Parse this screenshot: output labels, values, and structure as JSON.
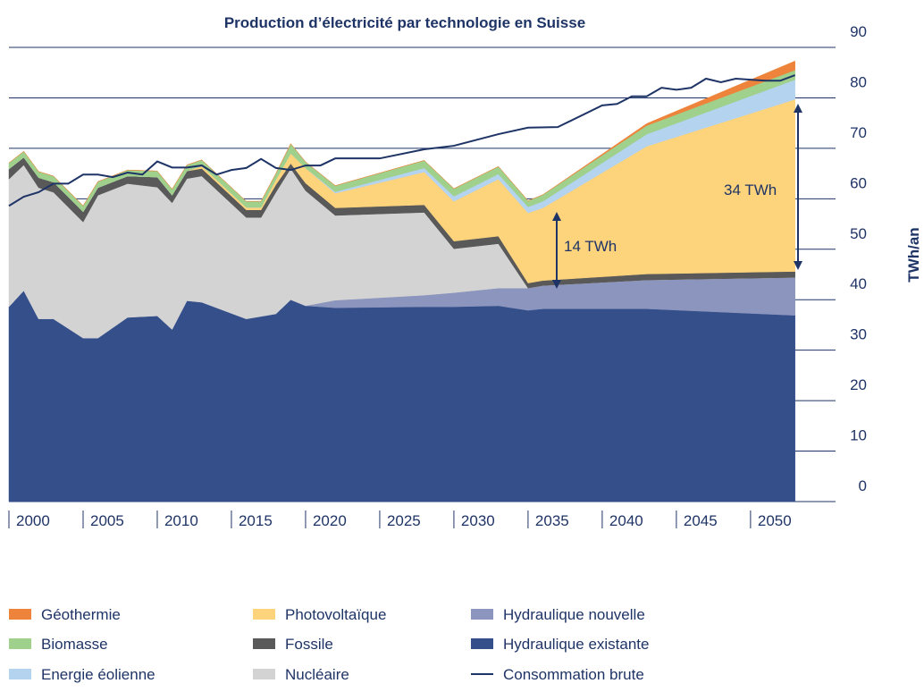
{
  "chart_data": {
    "type": "stacked-area",
    "title": "Production d’électricité par technologie en Suisse",
    "y_label": "TWh/an",
    "x": [
      2000,
      2001,
      2002,
      2003,
      2005,
      2006,
      2008,
      2010,
      2011,
      2012,
      2013,
      2016,
      2017,
      2018,
      2019,
      2020,
      2022,
      2028,
      2030,
      2033,
      2035,
      2036,
      2043,
      2053
    ],
    "xlim": [
      2000,
      2053.2
    ],
    "xticks": [
      2000,
      2005,
      2010,
      2015,
      2020,
      2025,
      2030,
      2035,
      2040,
      2045,
      2050
    ],
    "ylim": [
      0,
      90
    ],
    "yticks": [
      0,
      10,
      20,
      30,
      40,
      50,
      60,
      70,
      80,
      90
    ],
    "grid": true,
    "series": [
      {
        "name": "Hydraulique existante",
        "color": "#354f8a",
        "values": [
          38.6,
          41.8,
          36.2,
          36.2,
          32.4,
          32.4,
          36.5,
          36.8,
          34.1,
          39.8,
          39.5,
          36.2,
          36.7,
          37.2,
          40,
          38.8,
          38.4,
          38.6,
          38.6,
          38.8,
          37.9,
          38.2,
          38.2,
          36.9
        ]
      },
      {
        "name": "Hydraulique nouvelle",
        "color": "#8b95bd",
        "values": [
          0,
          0,
          0,
          0,
          0,
          0,
          0,
          0,
          0,
          0,
          0,
          0,
          0,
          0,
          0,
          0,
          1.5,
          2.3,
          2.8,
          3.5,
          4.4,
          4.6,
          5.7,
          7.5
        ]
      },
      {
        "name": "Nucléaire",
        "color": "#d3d3d3",
        "values": [
          25.3,
          24.9,
          26,
          25.1,
          23,
          28.3,
          26.5,
          25.5,
          25.1,
          24.2,
          25,
          20.1,
          19.6,
          24.1,
          26,
          22.8,
          16.8,
          16.4,
          8.7,
          8.8,
          0,
          0,
          0,
          0
        ]
      },
      {
        "name": "Fossile",
        "color": "#595959",
        "values": [
          2,
          1.5,
          2,
          2,
          2,
          1.5,
          1.5,
          2,
          1.5,
          1.5,
          1.5,
          1.5,
          1.5,
          1.5,
          1,
          1.5,
          1.5,
          1.5,
          1.5,
          1.5,
          1,
          1,
          1.2,
          1.2
        ]
      },
      {
        "name": "Photovoltaïque",
        "color": "#fdd37c",
        "values": [
          0,
          0,
          0,
          0,
          0,
          0,
          0,
          0,
          0,
          0,
          0.5,
          0.5,
          0.5,
          1,
          2,
          3,
          2.9,
          6.5,
          7.9,
          11.3,
          13.9,
          14.4,
          25.3,
          34.1
        ]
      },
      {
        "name": "Energie éolienne",
        "color": "#b3d3ef",
        "values": [
          0,
          0,
          0,
          0,
          0,
          0,
          0,
          0,
          0,
          0,
          0,
          0,
          0,
          0,
          0,
          0,
          0.3,
          0.8,
          1,
          1,
          1.2,
          1.3,
          2.4,
          3.9
        ]
      },
      {
        "name": "Biomasse",
        "color": "#9fd08c",
        "values": [
          1.2,
          1.2,
          1.2,
          1.2,
          1.2,
          1.2,
          1.2,
          1.2,
          1.2,
          1.2,
          1.2,
          1.2,
          1.2,
          1.2,
          1.9,
          1.2,
          1.2,
          1.5,
          1.5,
          1.5,
          1.2,
          1.3,
          1.7,
          1.9
        ]
      },
      {
        "name": "Géothermie",
        "color": "#ee843b",
        "values": [
          0,
          0,
          0,
          0,
          0,
          0,
          0,
          0,
          0,
          0,
          0,
          0,
          0,
          0,
          0,
          0,
          0,
          0,
          0,
          0,
          0,
          0,
          0.4,
          1.8
        ]
      }
    ],
    "line": {
      "name": "Consommation brute",
      "color": "#1f3466",
      "x": [
        2000,
        2001,
        2002,
        2003,
        2004,
        2005,
        2006,
        2007,
        2008,
        2009,
        2010,
        2011,
        2012,
        2013,
        2014,
        2015,
        2016,
        2017,
        2018,
        2019,
        2020,
        2021,
        2022,
        2025,
        2028,
        2030,
        2033,
        2035,
        2037,
        2040,
        2041,
        2042,
        2043,
        2044,
        2045,
        2046,
        2047,
        2048,
        2049,
        2050,
        2051,
        2052,
        2053
      ],
      "values": [
        58.6,
        60.4,
        61.3,
        63,
        63,
        64.8,
        64.8,
        64.3,
        65.2,
        64.8,
        67.4,
        66.2,
        66.2,
        66.6,
        64.8,
        65.7,
        66.1,
        67.9,
        66.1,
        65.7,
        66.6,
        66.6,
        68,
        68,
        69.8,
        70.5,
        72.8,
        74.1,
        74.2,
        78.5,
        78.8,
        80.3,
        80.3,
        82,
        81.6,
        82,
        83.8,
        83.1,
        83.8,
        83.6,
        83.4,
        83.4,
        84.5
      ]
    },
    "annotations": [
      "14 TWh",
      "34 TWh"
    ]
  }
}
